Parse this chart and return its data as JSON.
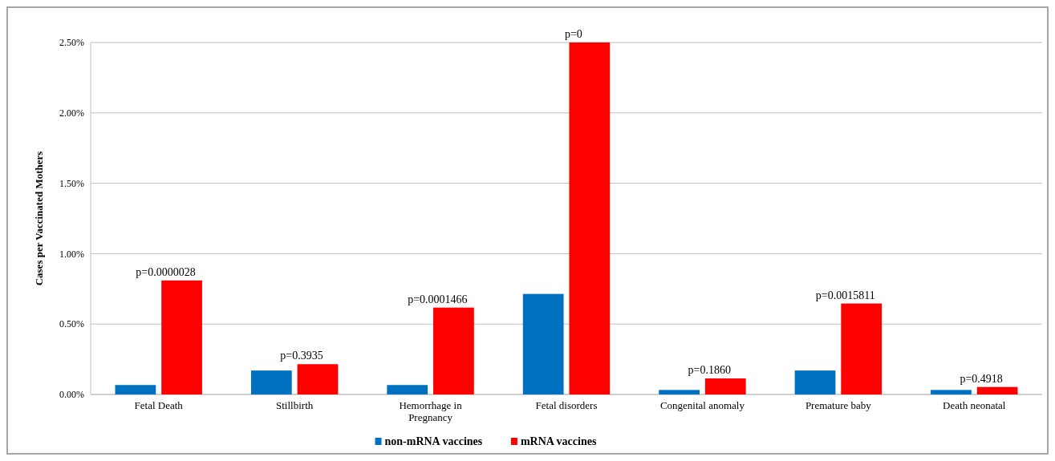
{
  "chart_data": {
    "type": "bar",
    "ylabel": "Cases per Vaccinated Mothers",
    "categories": [
      "Fetal Death",
      "Stillbirth",
      "Hemorrhage in Pregnancy",
      "Fetal disorders",
      "Congenital anomaly",
      "Premature baby",
      "Death neonatal"
    ],
    "series": [
      {
        "name": "non-mRNA vaccines",
        "color": "#0070c0",
        "values": [
          0.067,
          0.17,
          0.067,
          0.714,
          0.032,
          0.17,
          0.032
        ]
      },
      {
        "name": "mRNA vaccines",
        "color": "#ff0000",
        "values": [
          0.81,
          0.215,
          0.617,
          2.5,
          0.114,
          0.646,
          0.053
        ]
      }
    ],
    "ylim": [
      0,
      2.5
    ],
    "yticks": [
      {
        "value": 0,
        "label": "0.00%"
      },
      {
        "value": 0.5,
        "label": "0.50%"
      },
      {
        "value": 1,
        "label": "1.00%"
      },
      {
        "value": 1.5,
        "label": "1.50%"
      },
      {
        "value": 2,
        "label": "2.00%"
      },
      {
        "value": 2.5,
        "label": "2.50%"
      }
    ],
    "grid": "y",
    "legend": "bottom",
    "annotations": [
      {
        "text": "p=0.0000028",
        "x": "Fetal Death",
        "y": 0.81
      },
      {
        "text": "p=0.3935",
        "x": "Stillbirth",
        "y": 0.215
      },
      {
        "text": "p=0.0001466",
        "x": "Hemorrhage in Pregnancy",
        "y": 0.617
      },
      {
        "text": "p=0",
        "x": "Fetal disorders",
        "y": 2.5
      },
      {
        "text": "p=0.1860",
        "x": "Congenital anomaly",
        "y": 0.114
      },
      {
        "text": "p=0.0015811",
        "x": "Premature baby",
        "y": 0.646
      },
      {
        "text": "p=0.4918",
        "x": "Death neonatal",
        "y": 0.053
      }
    ]
  }
}
